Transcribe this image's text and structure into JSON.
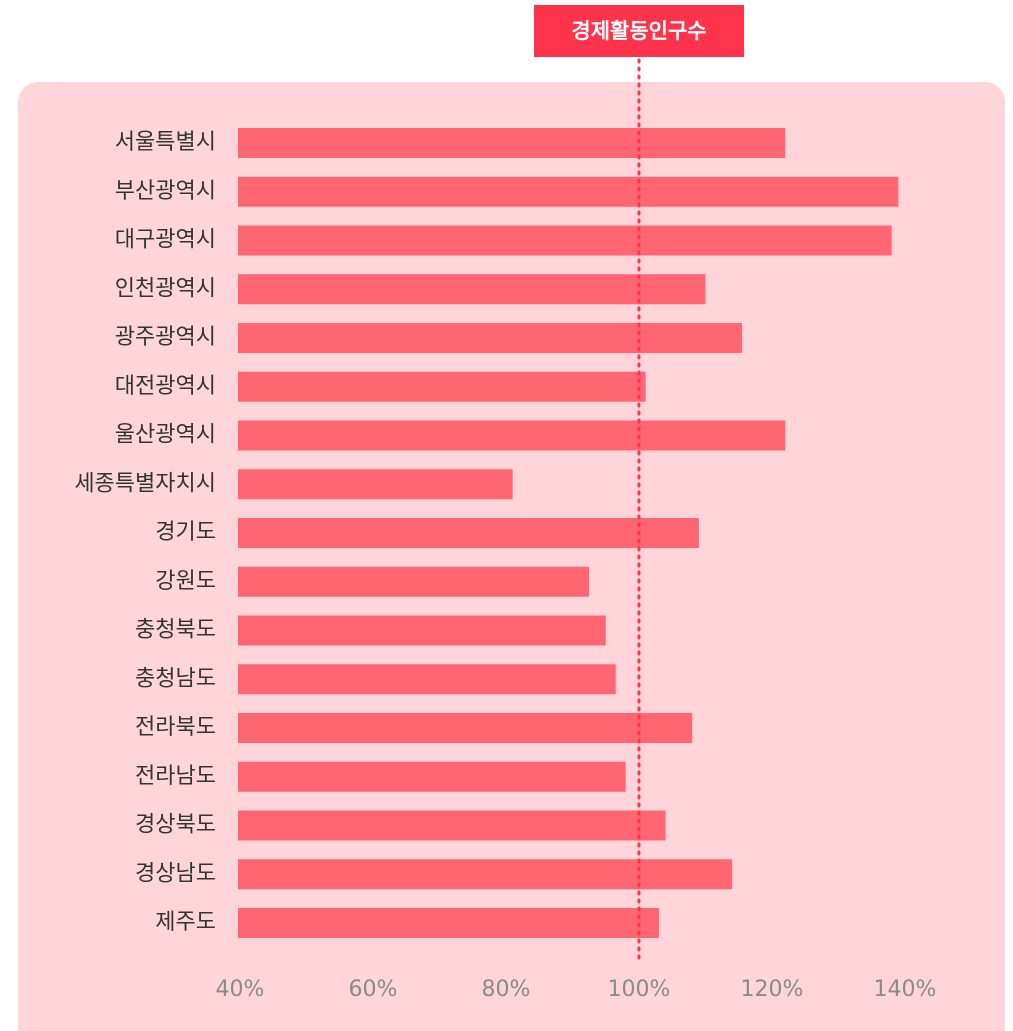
{
  "chart_data": {
    "type": "barh",
    "categories": [
      "서울특별시",
      "부산광역시",
      "대구광역시",
      "인천광역시",
      "광주광역시",
      "대전광역시",
      "울산광역시",
      "세종특별자치시",
      "경기도",
      "강원도",
      "충청북도",
      "충청남도",
      "전라북도",
      "전라남도",
      "경상북도",
      "경상남도",
      "제주도"
    ],
    "values": [
      122,
      139,
      138,
      110,
      115.5,
      101,
      122,
      81,
      109,
      92.5,
      95,
      96.5,
      108,
      98,
      104,
      114,
      103
    ],
    "color": "#ff6672",
    "xlim": [
      40,
      140
    ],
    "xticks": [
      {
        "value": 40,
        "label": "40%"
      },
      {
        "value": 60,
        "label": "60%"
      },
      {
        "value": 80,
        "label": "80%"
      },
      {
        "value": 100,
        "label": "100%"
      },
      {
        "value": 120,
        "label": "120%"
      },
      {
        "value": 140,
        "label": "140%"
      }
    ],
    "reference_line": {
      "value": 100,
      "label": "경제활동인구수",
      "color": "#ff3349"
    }
  }
}
